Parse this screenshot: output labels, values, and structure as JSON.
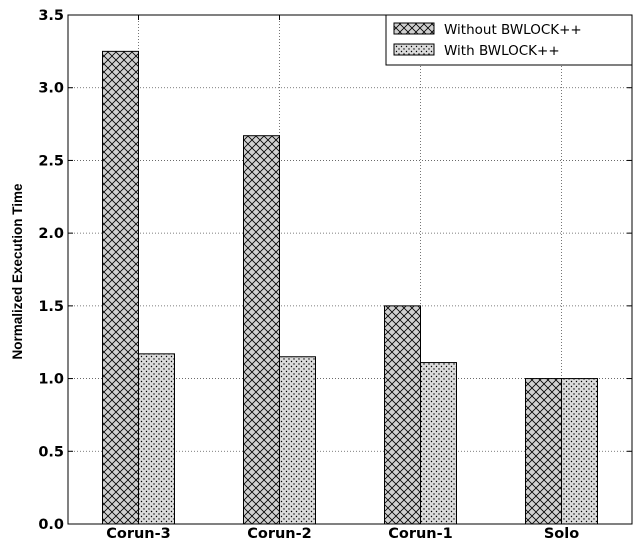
{
  "chart_data": {
    "type": "bar",
    "title": "",
    "xlabel": "",
    "ylabel": "Normalized Execution Time",
    "categories": [
      "Corun-3",
      "Corun-2",
      "Corun-1",
      "Solo"
    ],
    "series": [
      {
        "name": "Without BWLOCK++",
        "values": [
          3.25,
          2.67,
          1.5,
          1.0
        ],
        "color": "#c8c8c8",
        "pattern": "crosshatch"
      },
      {
        "name": "With BWLOCK++",
        "values": [
          1.17,
          1.15,
          1.11,
          1.0
        ],
        "color": "#dcdcdc",
        "pattern": "dots"
      }
    ],
    "ylim": [
      0,
      3.5
    ],
    "yticks": [
      "0.0",
      "0.5",
      "1.0",
      "1.5",
      "2.0",
      "2.5",
      "3.0",
      "3.5"
    ],
    "grid": true,
    "grid_style": "dotted",
    "legend_position": "top-right"
  }
}
